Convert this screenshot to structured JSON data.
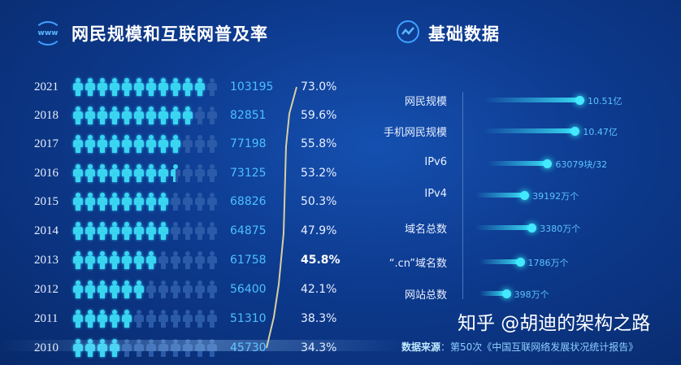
{
  "left_panel": {
    "title": "网民规模和互联网普及率",
    "icon": "www-icon",
    "icon_text": "www",
    "rows": [
      {
        "year": "2021",
        "users": "103195",
        "rate": "73.0%",
        "filled": 11
      },
      {
        "year": "2018",
        "users": "82851",
        "rate": "59.6%",
        "filled": 10
      },
      {
        "year": "2017",
        "users": "77198",
        "rate": "55.8%",
        "filled": 9
      },
      {
        "year": "2016",
        "users": "73125",
        "rate": "53.2%",
        "filled": 8.5
      },
      {
        "year": "2015",
        "users": "68826",
        "rate": "50.3%",
        "filled": 8
      },
      {
        "year": "2014",
        "users": "64875",
        "rate": "47.9%",
        "filled": 8
      },
      {
        "year": "2013",
        "users": "61758",
        "rate": "45.8%",
        "filled": 7
      },
      {
        "year": "2012",
        "users": "56400",
        "rate": "42.1%",
        "filled": 6
      },
      {
        "year": "2011",
        "users": "51310",
        "rate": "38.3%",
        "filled": 5
      },
      {
        "year": "2010",
        "users": "45730",
        "rate": "34.3%",
        "filled": 4
      }
    ],
    "icons_per_row": 12
  },
  "right_panel": {
    "title": "基础数据",
    "icon": "trend-line-icon",
    "items": [
      {
        "label": "网民规模",
        "value": "10.51亿",
        "level": 1.0
      },
      {
        "label": "手机网民规模",
        "value": "10.47亿",
        "level": 0.95
      },
      {
        "label": "IPv6",
        "value": "63079块/32",
        "level": 0.65
      },
      {
        "label": "IPv4",
        "value": "39192万个",
        "level": 0.4
      },
      {
        "label": "域名总数",
        "value": "3380万个",
        "level": 0.48
      },
      {
        "label": "“.cn”域名数",
        "value": "1786万个",
        "level": 0.35
      },
      {
        "label": "网站总数",
        "value": "398万个",
        "level": 0.2
      }
    ]
  },
  "source": {
    "label": "数据来源",
    "text": "：第50次《中国互联网络发展状况统计报告》"
  },
  "watermark": "知乎 @胡迪的架构之路",
  "colors": {
    "accent": "#3ad6f0",
    "number": "#4cc0ff",
    "trend_line": "#d8d0a0",
    "background": "#0d3a8e"
  }
}
